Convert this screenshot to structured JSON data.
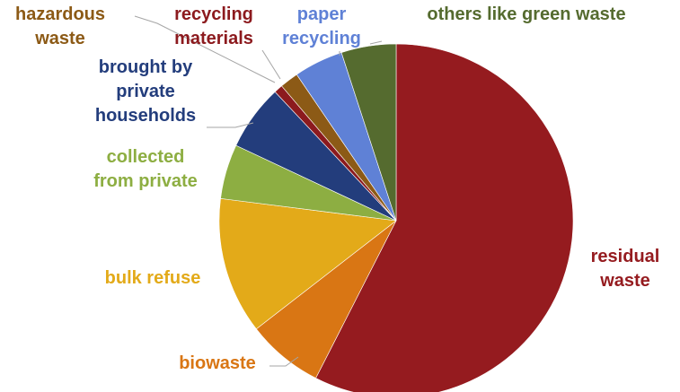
{
  "chart_data": {
    "type": "pie",
    "start_angle_deg": 0,
    "direction": "clockwise",
    "slices": [
      {
        "label": [
          "residual",
          "waste"
        ],
        "value": 57.5,
        "color": "#951B1F"
      },
      {
        "label": [
          "biowaste"
        ],
        "value": 7.0,
        "color": "#D97614"
      },
      {
        "label": [
          "bulk refuse"
        ],
        "value": 12.5,
        "color": "#E3AA19"
      },
      {
        "label": [
          "collected",
          "from private"
        ],
        "value": 5.0,
        "color": "#8DAE42"
      },
      {
        "label": [
          "brought by",
          "private",
          "households"
        ],
        "value": 6.0,
        "color": "#233D7C"
      },
      {
        "label": [
          "hazardous",
          "waste"
        ],
        "value": 0.8,
        "color": "#8C1A1E"
      },
      {
        "label": [
          "recycling",
          "materials"
        ],
        "value": 1.7,
        "color": "#8C5A16"
      },
      {
        "label": [
          "paper",
          "recycling"
        ],
        "value": 4.5,
        "color": "#5F81D6"
      },
      {
        "label": [
          "others like  green  waste"
        ],
        "value": 5.0,
        "color": "#556B2F"
      }
    ],
    "label_colors": [
      "#951B1F",
      "#D97614",
      "#E3AA19",
      "#8DAE42",
      "#233D7C",
      "#8C5A16",
      "#8C1A1E",
      "#5F81D6",
      "#556B2F"
    ],
    "legend": "none"
  }
}
